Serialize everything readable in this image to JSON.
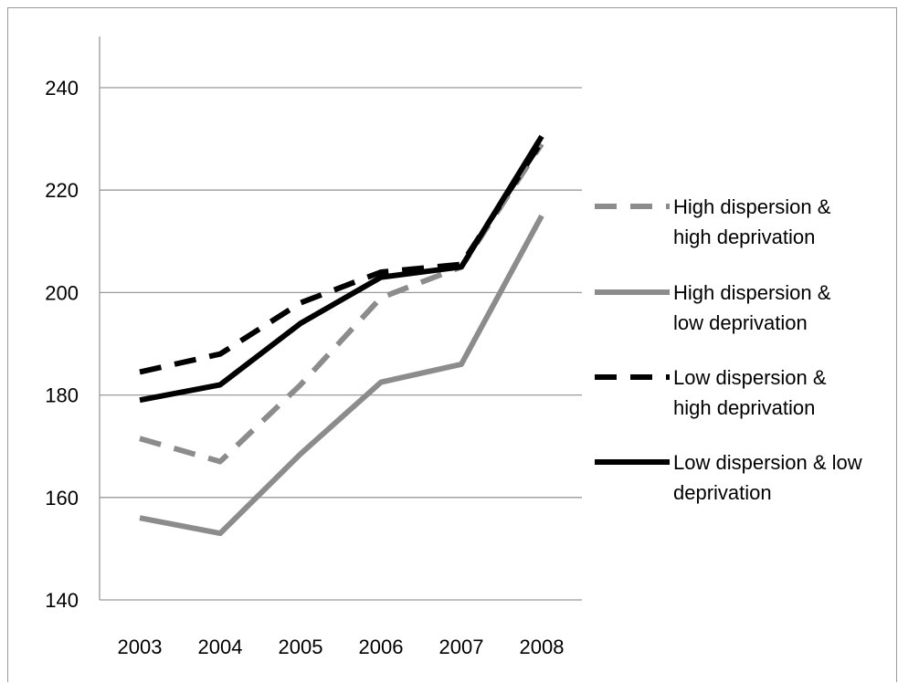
{
  "chart_data": {
    "type": "line",
    "title": "",
    "xlabel": "",
    "ylabel": "",
    "categories": [
      "2003",
      "2004",
      "2005",
      "2006",
      "2007",
      "2008"
    ],
    "ylim": [
      140,
      240
    ],
    "yticks": [
      "140",
      "160",
      "180",
      "200",
      "220",
      "240"
    ],
    "grid": "horizontal",
    "legend_position": "right",
    "series": [
      {
        "name": "High dispersion & high deprivation",
        "legend_lines": [
          "High dispersion &",
          "high deprivation"
        ],
        "values": [
          171.5,
          167,
          182,
          199,
          205,
          229
        ],
        "color": "#8c8c8c",
        "dash": "dashed"
      },
      {
        "name": "High dispersion & low deprivation",
        "legend_lines": [
          "High dispersion &",
          "low deprivation"
        ],
        "values": [
          156,
          153,
          168.5,
          182.5,
          186,
          215
        ],
        "color": "#8c8c8c",
        "dash": "solid"
      },
      {
        "name": "Low dispersion & high deprivation",
        "legend_lines": [
          "Low dispersion &",
          "high deprivation"
        ],
        "values": [
          184.5,
          188,
          198,
          204,
          205.5,
          229.5
        ],
        "color": "#000000",
        "dash": "dashed"
      },
      {
        "name": "Low dispersion & low deprivation",
        "legend_lines": [
          "Low dispersion & low",
          "deprivation"
        ],
        "values": [
          179,
          182,
          194,
          203,
          205,
          230.5
        ],
        "color": "#000000",
        "dash": "solid"
      }
    ]
  }
}
